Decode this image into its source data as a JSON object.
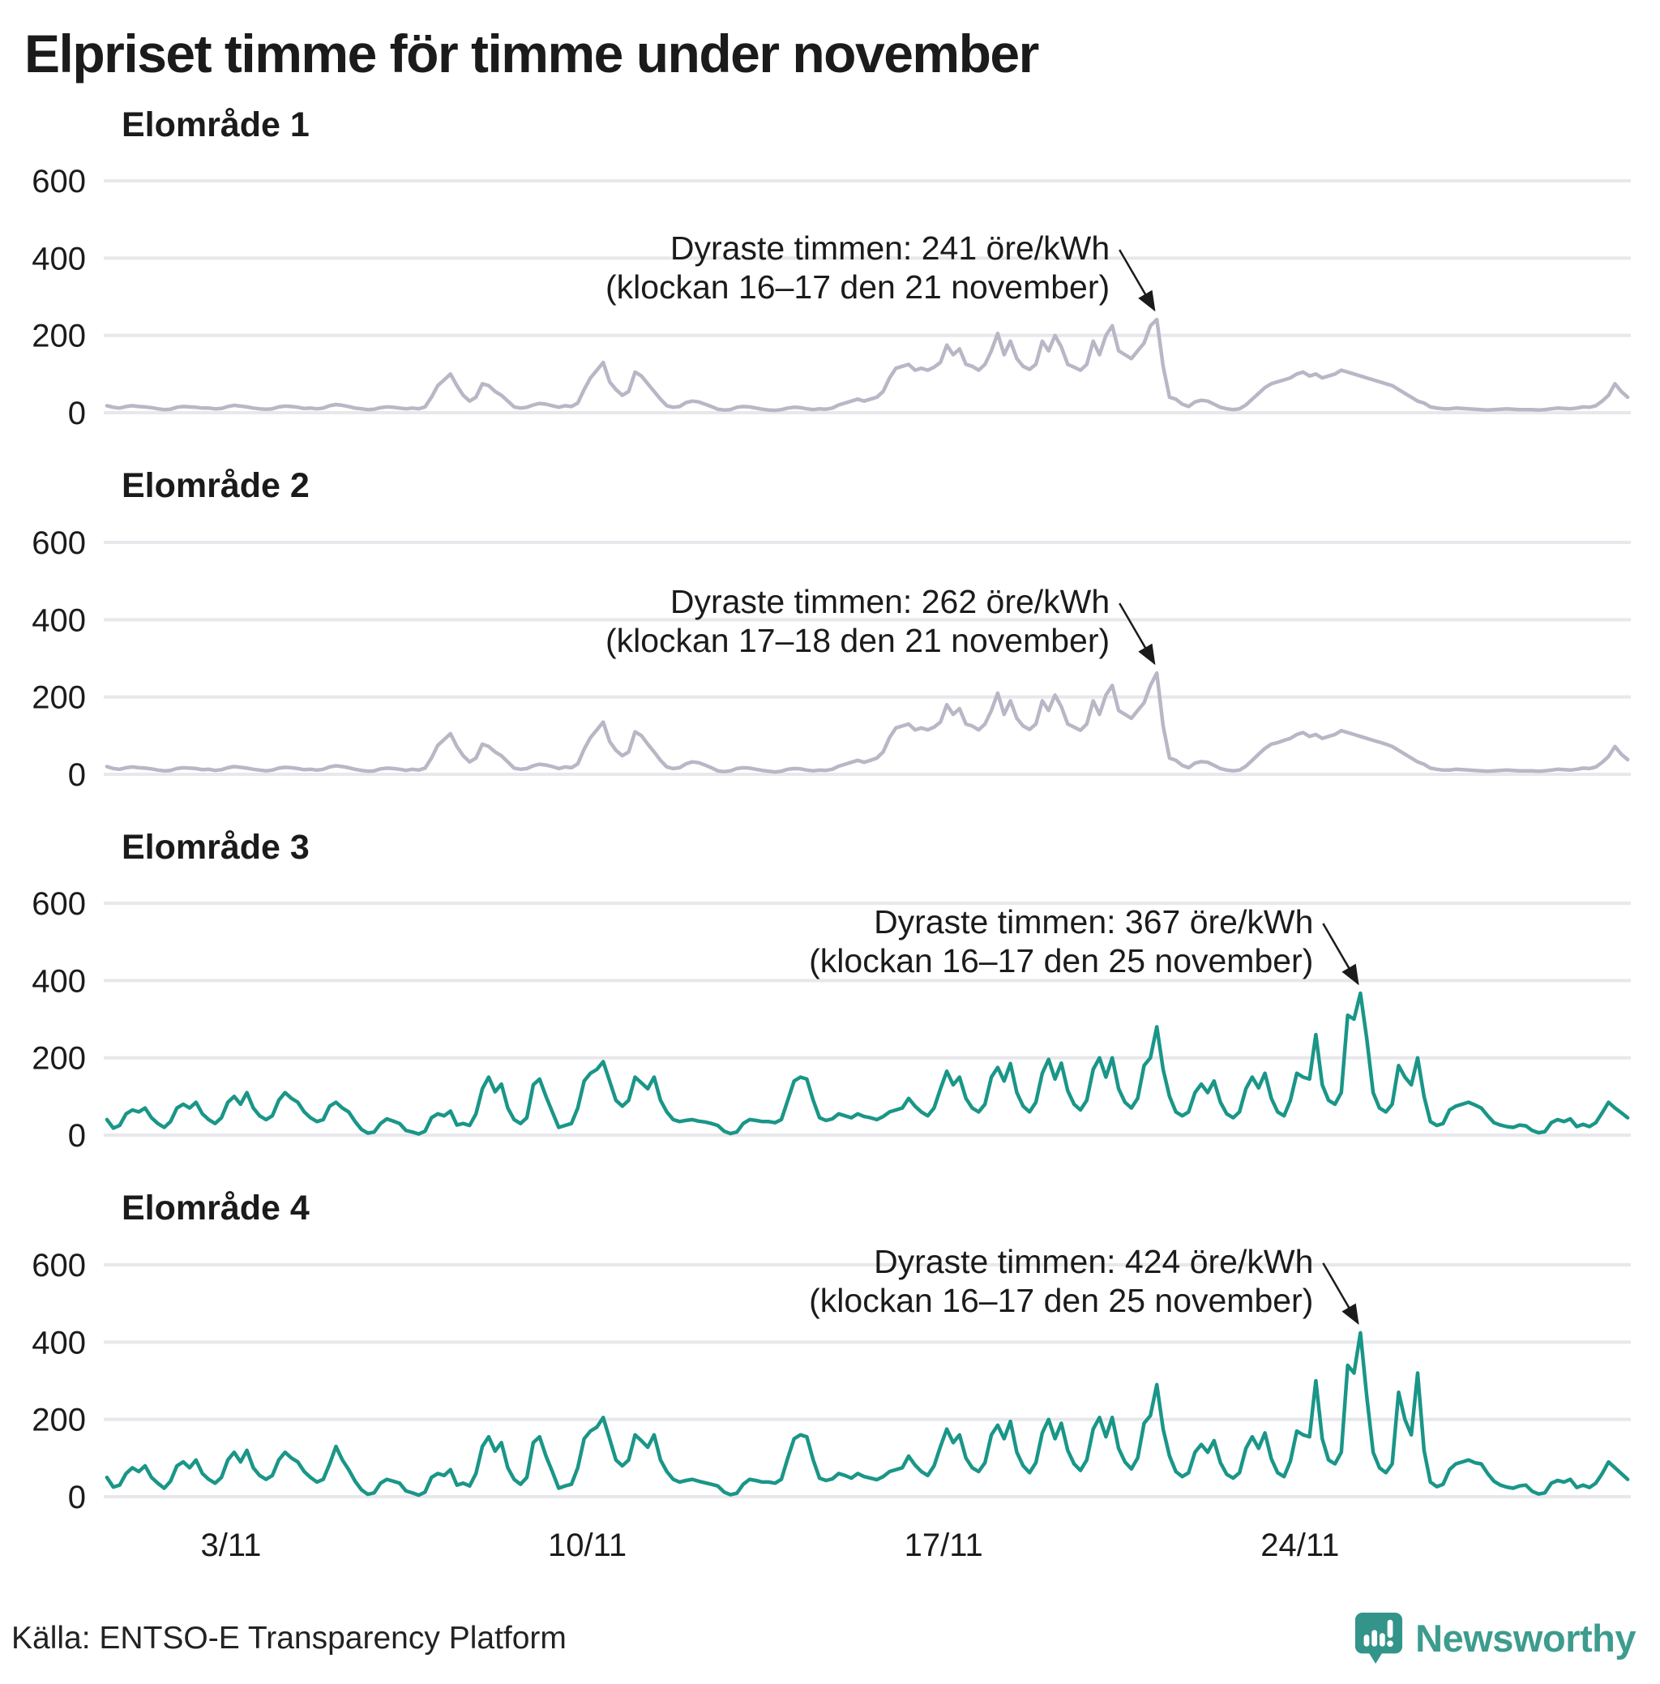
{
  "title": "Elpriset timme för timme under november",
  "source": "Källa: ENTSO-E Transparency Platform",
  "logo": {
    "text": "Newsworthy"
  },
  "colors": {
    "grid": "#e8e8ec",
    "text": "#1b1b1b",
    "annotation": "#1b1b1b",
    "line_gray": "#b9b7c6",
    "line_teal": "#1a9688",
    "logo_bubble": "#33948a",
    "logo_text": "#3d9c8e"
  },
  "x_axis": {
    "days": 30,
    "month_label": "november",
    "ticks": [
      {
        "day": 3,
        "label": "3/11"
      },
      {
        "day": 10,
        "label": "10/11"
      },
      {
        "day": 17,
        "label": "17/11"
      },
      {
        "day": 24,
        "label": "24/11"
      }
    ]
  },
  "chart_data": [
    {
      "type": "line",
      "title": "Elområde 1",
      "unit": "öre/kWh",
      "color": "#b9b7c6",
      "ylim": [
        0,
        600
      ],
      "yticks": [
        0,
        200,
        400,
        600
      ],
      "hours_per_step": 3,
      "show_x_labels": false,
      "peak": {
        "value": 241,
        "hours": "16–17",
        "date": "21 november"
      },
      "annotation": {
        "line1": "Dyraste timmen: 241 öre/kWh",
        "line2": "(klockan 16–17 den 21 november)"
      },
      "values": [
        18,
        14,
        12,
        16,
        18,
        16,
        15,
        13,
        10,
        8,
        9,
        14,
        16,
        15,
        14,
        12,
        12,
        10,
        11,
        16,
        19,
        17,
        15,
        12,
        10,
        9,
        10,
        15,
        17,
        16,
        14,
        11,
        12,
        10,
        12,
        18,
        21,
        19,
        16,
        12,
        10,
        8,
        9,
        13,
        15,
        14,
        12,
        10,
        12,
        10,
        15,
        40,
        70,
        85,
        100,
        70,
        45,
        30,
        40,
        75,
        70,
        55,
        45,
        30,
        15,
        12,
        14,
        20,
        24,
        22,
        18,
        14,
        18,
        16,
        25,
        60,
        90,
        110,
        130,
        80,
        60,
        45,
        55,
        105,
        95,
        75,
        55,
        35,
        18,
        14,
        16,
        26,
        30,
        28,
        22,
        16,
        9,
        7,
        8,
        14,
        16,
        15,
        12,
        9,
        7,
        6,
        8,
        12,
        14,
        13,
        10,
        8,
        10,
        9,
        12,
        20,
        25,
        30,
        35,
        30,
        35,
        40,
        55,
        90,
        115,
        120,
        125,
        110,
        115,
        110,
        118,
        130,
        175,
        150,
        165,
        125,
        120,
        110,
        125,
        160,
        205,
        150,
        185,
        140,
        120,
        112,
        125,
        185,
        160,
        200,
        170,
        125,
        118,
        110,
        125,
        185,
        150,
        200,
        225,
        160,
        150,
        140,
        160,
        180,
        225,
        241,
        120,
        40,
        35,
        22,
        16,
        28,
        32,
        30,
        22,
        14,
        10,
        8,
        10,
        20,
        35,
        50,
        65,
        75,
        80,
        85,
        90,
        100,
        105,
        95,
        100,
        90,
        95,
        100,
        110,
        105,
        100,
        95,
        90,
        85,
        80,
        75,
        70,
        60,
        50,
        40,
        30,
        25,
        15,
        12,
        10,
        10,
        12,
        11,
        10,
        9,
        8,
        7,
        8,
        9,
        10,
        9,
        8,
        8,
        8,
        7,
        8,
        10,
        12,
        11,
        10,
        12,
        15,
        14,
        18,
        30,
        45,
        75,
        55,
        40
      ]
    },
    {
      "type": "line",
      "title": "Elområde 2",
      "unit": "öre/kWh",
      "color": "#b9b7c6",
      "ylim": [
        0,
        600
      ],
      "yticks": [
        0,
        200,
        400,
        600
      ],
      "hours_per_step": 3,
      "show_x_labels": false,
      "peak": {
        "value": 262,
        "hours": "17–18",
        "date": "21 november"
      },
      "annotation": {
        "line1": "Dyraste timmen: 262 öre/kWh",
        "line2": "(klockan 17–18 den 21 november)"
      },
      "values": [
        20,
        15,
        13,
        17,
        19,
        17,
        16,
        14,
        11,
        9,
        10,
        15,
        17,
        16,
        15,
        12,
        13,
        10,
        12,
        17,
        20,
        18,
        16,
        13,
        11,
        9,
        11,
        16,
        18,
        17,
        15,
        12,
        13,
        11,
        13,
        19,
        22,
        20,
        17,
        13,
        10,
        8,
        9,
        14,
        16,
        15,
        13,
        10,
        13,
        11,
        16,
        42,
        75,
        90,
        105,
        72,
        48,
        32,
        42,
        78,
        72,
        58,
        48,
        32,
        16,
        13,
        15,
        22,
        26,
        24,
        20,
        15,
        19,
        17,
        27,
        65,
        95,
        115,
        135,
        85,
        62,
        48,
        58,
        110,
        100,
        78,
        58,
        36,
        19,
        15,
        17,
        27,
        32,
        30,
        24,
        17,
        9,
        7,
        9,
        15,
        17,
        16,
        13,
        10,
        8,
        6,
        8,
        13,
        15,
        14,
        11,
        9,
        11,
        10,
        13,
        21,
        26,
        31,
        36,
        31,
        36,
        42,
        58,
        95,
        120,
        125,
        130,
        115,
        120,
        115,
        122,
        135,
        180,
        155,
        170,
        130,
        125,
        115,
        130,
        165,
        210,
        155,
        190,
        145,
        125,
        116,
        130,
        190,
        165,
        205,
        175,
        130,
        122,
        114,
        130,
        190,
        155,
        205,
        230,
        165,
        155,
        145,
        165,
        185,
        230,
        262,
        125,
        42,
        36,
        23,
        17,
        29,
        33,
        31,
        23,
        15,
        11,
        9,
        11,
        21,
        36,
        52,
        67,
        78,
        82,
        88,
        93,
        103,
        108,
        98,
        103,
        93,
        98,
        103,
        113,
        108,
        103,
        98,
        93,
        88,
        83,
        78,
        72,
        62,
        52,
        42,
        32,
        26,
        16,
        13,
        11,
        11,
        13,
        12,
        11,
        10,
        9,
        8,
        9,
        10,
        11,
        10,
        9,
        9,
        9,
        8,
        9,
        11,
        13,
        12,
        11,
        13,
        16,
        15,
        19,
        31,
        46,
        72,
        52,
        38
      ]
    },
    {
      "type": "line",
      "title": "Elområde 3",
      "unit": "öre/kWh",
      "color": "#1a9688",
      "ylim": [
        0,
        600
      ],
      "yticks": [
        0,
        200,
        400,
        600
      ],
      "hours_per_step": 3,
      "show_x_labels": false,
      "peak": {
        "value": 367,
        "hours": "16–17",
        "date": "25 november"
      },
      "annotation": {
        "line1": "Dyraste timmen: 367 öre/kWh",
        "line2": "(klockan 16–17 den 25 november)"
      },
      "values": [
        40,
        18,
        25,
        55,
        65,
        60,
        70,
        45,
        30,
        20,
        35,
        70,
        80,
        70,
        85,
        55,
        40,
        30,
        45,
        85,
        100,
        80,
        110,
        70,
        50,
        40,
        50,
        90,
        110,
        95,
        85,
        60,
        45,
        35,
        40,
        75,
        85,
        70,
        60,
        35,
        15,
        5,
        8,
        30,
        42,
        36,
        30,
        12,
        8,
        3,
        10,
        45,
        55,
        50,
        62,
        26,
        30,
        25,
        55,
        120,
        150,
        112,
        132,
        70,
        40,
        30,
        45,
        130,
        145,
        100,
        60,
        20,
        25,
        30,
        70,
        140,
        160,
        170,
        190,
        140,
        90,
        75,
        90,
        150,
        135,
        120,
        150,
        90,
        60,
        40,
        35,
        38,
        40,
        36,
        34,
        30,
        25,
        10,
        4,
        8,
        30,
        40,
        38,
        35,
        35,
        32,
        40,
        90,
        140,
        150,
        145,
        90,
        45,
        38,
        42,
        55,
        50,
        45,
        55,
        48,
        45,
        40,
        48,
        60,
        65,
        70,
        95,
        75,
        60,
        50,
        70,
        120,
        165,
        130,
        150,
        95,
        70,
        60,
        80,
        150,
        175,
        140,
        185,
        110,
        75,
        60,
        85,
        160,
        196,
        145,
        186,
        115,
        80,
        65,
        90,
        170,
        200,
        150,
        200,
        120,
        85,
        70,
        95,
        180,
        200,
        280,
        170,
        100,
        60,
        50,
        60,
        110,
        132,
        110,
        140,
        85,
        55,
        45,
        60,
        120,
        150,
        122,
        160,
        95,
        60,
        50,
        90,
        160,
        150,
        145,
        260,
        130,
        90,
        80,
        110,
        310,
        300,
        367,
        250,
        110,
        70,
        60,
        80,
        180,
        150,
        130,
        200,
        100,
        35,
        25,
        30,
        65,
        75,
        80,
        85,
        78,
        70,
        50,
        32,
        26,
        22,
        20,
        26,
        24,
        12,
        6,
        9,
        32,
        40,
        35,
        42,
        22,
        28,
        22,
        32,
        58,
        85,
        70,
        58,
        45
      ]
    },
    {
      "type": "line",
      "title": "Elområde 4",
      "unit": "öre/kWh",
      "color": "#1a9688",
      "ylim": [
        0,
        600
      ],
      "yticks": [
        0,
        200,
        400,
        600
      ],
      "hours_per_step": 3,
      "show_x_labels": true,
      "peak": {
        "value": 424,
        "hours": "16–17",
        "date": "25 november"
      },
      "annotation": {
        "line1": "Dyraste timmen: 424 öre/kWh",
        "line2": "(klockan 16–17 den 25 november)"
      },
      "values": [
        50,
        25,
        30,
        60,
        75,
        65,
        80,
        50,
        35,
        22,
        40,
        80,
        90,
        75,
        95,
        60,
        45,
        35,
        50,
        95,
        115,
        90,
        120,
        75,
        55,
        45,
        55,
        95,
        115,
        100,
        90,
        65,
        50,
        38,
        45,
        85,
        130,
        95,
        70,
        40,
        18,
        6,
        10,
        35,
        45,
        40,
        35,
        15,
        10,
        4,
        12,
        50,
        60,
        55,
        70,
        30,
        35,
        28,
        60,
        130,
        155,
        118,
        140,
        75,
        45,
        32,
        50,
        140,
        155,
        105,
        65,
        22,
        28,
        32,
        75,
        150,
        170,
        180,
        205,
        150,
        95,
        80,
        95,
        160,
        145,
        128,
        160,
        95,
        65,
        45,
        38,
        42,
        45,
        40,
        36,
        32,
        28,
        12,
        5,
        9,
        32,
        45,
        42,
        38,
        38,
        35,
        45,
        100,
        150,
        160,
        155,
        95,
        48,
        42,
        46,
        60,
        55,
        48,
        60,
        52,
        48,
        44,
        52,
        65,
        70,
        75,
        105,
        82,
        65,
        55,
        80,
        130,
        175,
        140,
        160,
        100,
        75,
        65,
        88,
        160,
        185,
        150,
        195,
        115,
        80,
        62,
        88,
        165,
        200,
        150,
        190,
        120,
        85,
        68,
        95,
        175,
        205,
        155,
        205,
        125,
        90,
        72,
        100,
        190,
        210,
        290,
        175,
        105,
        65,
        52,
        62,
        115,
        135,
        115,
        145,
        88,
        58,
        48,
        62,
        125,
        155,
        125,
        165,
        98,
        62,
        52,
        92,
        170,
        160,
        155,
        300,
        150,
        95,
        85,
        115,
        340,
        320,
        424,
        260,
        115,
        75,
        62,
        85,
        270,
        200,
        160,
        320,
        120,
        38,
        26,
        32,
        70,
        85,
        90,
        95,
        88,
        85,
        60,
        40,
        30,
        25,
        22,
        28,
        30,
        14,
        7,
        10,
        35,
        42,
        38,
        45,
        24,
        30,
        24,
        35,
        60,
        90,
        75,
        60,
        45
      ]
    }
  ]
}
